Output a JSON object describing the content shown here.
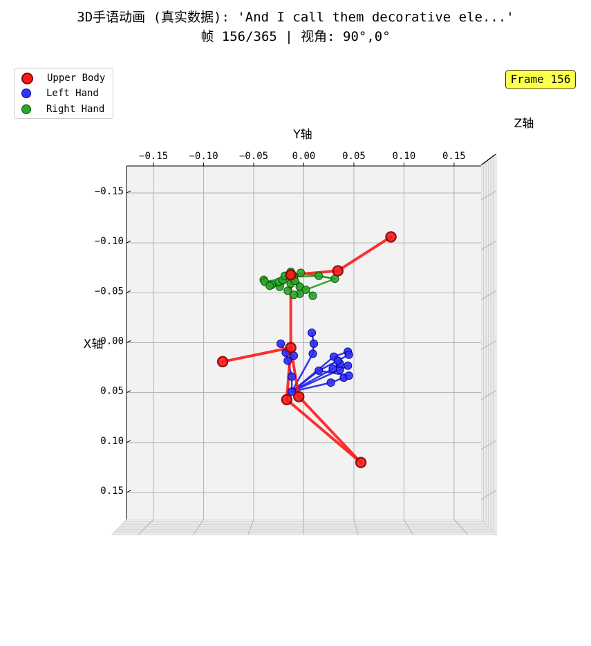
{
  "title": {
    "line1": "3D手语动画 (真实数据): 'And I call them decorative ele...'",
    "line2": "帧 156/365 | 视角: 90°,0°"
  },
  "frame_badge": "Frame 156",
  "legend": [
    {
      "label": "Upper Body",
      "color": "#ff0000"
    },
    {
      "label": "Left Hand",
      "color": "#0000ff"
    },
    {
      "label": "Right Hand",
      "color": "#008000"
    }
  ],
  "axes": {
    "xlabel": "Y轴",
    "ylabel": "X轴",
    "zlabel": "Z轴",
    "y_ticks": [
      "−0.15",
      "−0.10",
      "−0.05",
      "0.00",
      "0.05",
      "0.10",
      "0.15"
    ],
    "x_ticks": [
      "−0.15",
      "−0.10",
      "−0.05",
      "0.00",
      "0.05",
      "0.10",
      "0.15"
    ]
  },
  "chart_data": {
    "type": "scatter",
    "view": {
      "elev": 90,
      "azim": 0
    },
    "xlim": [
      -0.177,
      0.177
    ],
    "ylim": [
      -0.177,
      0.177
    ],
    "series": [
      {
        "name": "Upper Body",
        "color": "#ff0000",
        "points": [
          [
            -0.013,
            -0.068
          ],
          [
            0.034,
            -0.072
          ],
          [
            0.087,
            -0.106
          ],
          [
            -0.013,
            0.005
          ],
          [
            -0.081,
            0.019
          ],
          [
            -0.017,
            0.057
          ],
          [
            -0.005,
            0.054
          ],
          [
            0.057,
            0.12
          ]
        ],
        "bones": [
          [
            0,
            1
          ],
          [
            1,
            2
          ],
          [
            0,
            3
          ],
          [
            3,
            4
          ],
          [
            3,
            5
          ],
          [
            3,
            6
          ],
          [
            5,
            7
          ],
          [
            6,
            7
          ]
        ]
      },
      {
        "name": "Left Hand",
        "color": "#0000ff",
        "points": [
          [
            -0.012,
            0.049
          ],
          [
            -0.023,
            0.001
          ],
          [
            -0.018,
            0.01
          ],
          [
            -0.016,
            0.018
          ],
          [
            -0.01,
            0.013
          ],
          [
            0.009,
            0.011
          ],
          [
            0.01,
            0.001
          ],
          [
            0.008,
            -0.01
          ],
          [
            0.03,
            0.014
          ],
          [
            0.036,
            0.027
          ],
          [
            0.044,
            0.023
          ],
          [
            0.04,
            0.035
          ],
          [
            0.044,
            0.009
          ],
          [
            0.036,
            0.021
          ],
          [
            0.029,
            0.026
          ],
          [
            0.027,
            0.04
          ],
          [
            0.034,
            0.018
          ],
          [
            0.045,
            0.033
          ],
          [
            0.045,
            0.012
          ],
          [
            -0.012,
            0.034
          ],
          [
            0.015,
            0.028
          ]
        ],
        "bones": [
          [
            0,
            19
          ],
          [
            19,
            2
          ],
          [
            2,
            1
          ],
          [
            19,
            3
          ],
          [
            3,
            4
          ],
          [
            0,
            5
          ],
          [
            5,
            6
          ],
          [
            6,
            7
          ],
          [
            0,
            8
          ],
          [
            8,
            12
          ],
          [
            0,
            9
          ],
          [
            9,
            10
          ],
          [
            0,
            15
          ],
          [
            15,
            11
          ],
          [
            0,
            14
          ],
          [
            14,
            13
          ],
          [
            0,
            20
          ],
          [
            20,
            16
          ],
          [
            16,
            18
          ],
          [
            20,
            17
          ]
        ]
      },
      {
        "name": "Right Hand",
        "color": "#008000",
        "points": [
          [
            -0.01,
            -0.066
          ],
          [
            -0.013,
            -0.059
          ],
          [
            -0.016,
            -0.052
          ],
          [
            -0.024,
            -0.056
          ],
          [
            -0.032,
            -0.058
          ],
          [
            -0.04,
            -0.063
          ],
          [
            -0.039,
            -0.061
          ],
          [
            -0.034,
            -0.057
          ],
          [
            -0.025,
            -0.061
          ],
          [
            -0.021,
            -0.063
          ],
          [
            -0.019,
            -0.067
          ],
          [
            -0.013,
            -0.071
          ],
          [
            -0.003,
            -0.07
          ],
          [
            0.015,
            -0.067
          ],
          [
            0.031,
            -0.064
          ],
          [
            -0.009,
            -0.062
          ],
          [
            -0.004,
            -0.056
          ],
          [
            0.002,
            -0.053
          ],
          [
            -0.004,
            -0.049
          ],
          [
            -0.01,
            -0.048
          ],
          [
            0.009,
            -0.047
          ]
        ],
        "bones": [
          [
            0,
            1
          ],
          [
            1,
            2
          ],
          [
            0,
            3
          ],
          [
            3,
            4
          ],
          [
            4,
            5
          ],
          [
            0,
            6
          ],
          [
            0,
            7
          ],
          [
            0,
            8
          ],
          [
            8,
            9
          ],
          [
            0,
            10
          ],
          [
            10,
            11
          ],
          [
            0,
            12
          ],
          [
            0,
            13
          ],
          [
            13,
            14
          ],
          [
            0,
            15
          ],
          [
            15,
            16
          ],
          [
            16,
            17
          ],
          [
            0,
            18
          ],
          [
            18,
            19
          ],
          [
            0,
            20
          ],
          [
            12,
            14
          ],
          [
            17,
            14
          ]
        ]
      }
    ]
  }
}
